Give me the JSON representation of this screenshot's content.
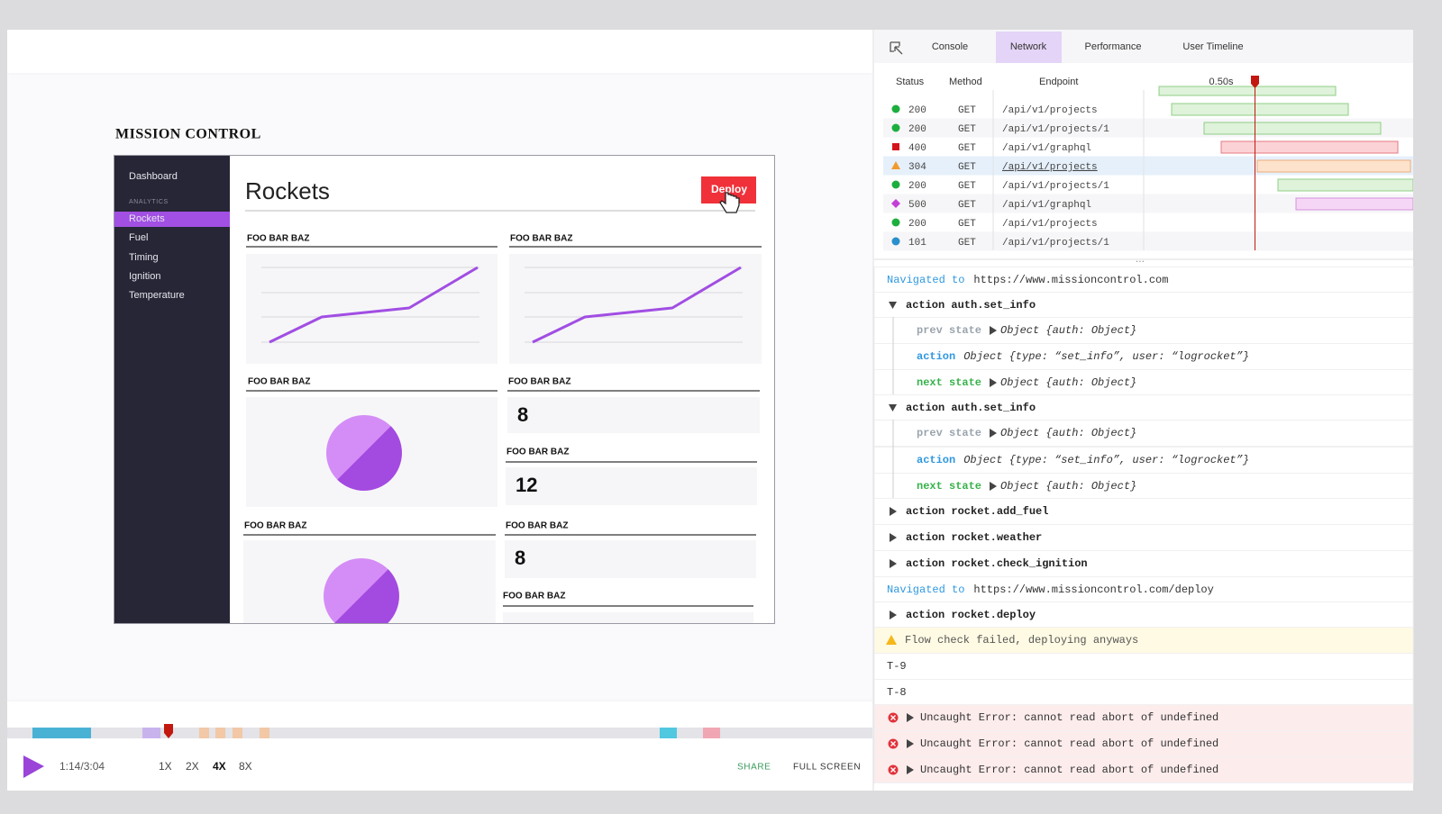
{
  "app": {
    "title": "MISSION CONTROL",
    "sidebar": {
      "top_item": "Dashboard",
      "section": "ANALYTICS",
      "items": [
        "Rockets",
        "Fuel",
        "Timing",
        "Ignition",
        "Temperature"
      ]
    },
    "page_title": "Rockets",
    "deploy_button": "Deploy",
    "widgets": [
      {
        "label": "FOO BAR BAZ"
      },
      {
        "label": "FOO BAR BAZ"
      },
      {
        "label": "FOO BAR BAZ"
      },
      {
        "label": "FOO BAR BAZ",
        "value": 8
      },
      {
        "label": "FOO BAR BAZ",
        "value": 12
      },
      {
        "label": "FOO BAR BAZ"
      },
      {
        "label": "FOO BAR BAZ",
        "value": 8
      },
      {
        "label": "FOO BAR BAZ"
      }
    ]
  },
  "devtools": {
    "tabs": [
      "Console",
      "Network",
      "Performance",
      "User Timeline"
    ],
    "network": {
      "columns": [
        "Status",
        "Method",
        "Endpoint"
      ],
      "time_marker": "0.50s",
      "rows": [
        [
          "200",
          "GET",
          "/api/v1/projects"
        ],
        [
          "200",
          "GET",
          "/api/v1/projects/1"
        ],
        [
          "400",
          "GET",
          "/api/v1/graphql"
        ],
        [
          "304",
          "GET",
          "/api/v1/projects"
        ],
        [
          "200",
          "GET",
          "/api/v1/projects/1"
        ],
        [
          "500",
          "GET",
          "/api/v1/graphql"
        ],
        [
          "200",
          "GET",
          "/api/v1/projects"
        ],
        [
          "101",
          "GET",
          "/api/v1/projects/1"
        ]
      ]
    },
    "console": [
      {
        "navigated": "Navigated to",
        "url": "https://www.missioncontrol.com"
      },
      {
        "action": "action auth.set_info",
        "children": [
          {
            "key": "prev state",
            "value": "Object {auth: Object}"
          },
          {
            "key": "action",
            "value": "Object {type: “set_info”, user: “logrocket”}"
          },
          {
            "key": "next state",
            "value": "Object {auth: Object}"
          }
        ]
      },
      {
        "action": "action auth.set_info",
        "children": [
          {
            "key": "prev state",
            "value": "Object {auth: Object}"
          },
          {
            "key": "action",
            "value": "Object {type: “set_info”, user: “logrocket”}"
          },
          {
            "key": "next state",
            "value": "Object {auth: Object}"
          }
        ]
      },
      {
        "action": "action rocket.add_fuel"
      },
      {
        "action": "action rocket.weather"
      },
      {
        "action": "action rocket.check_ignition"
      },
      {
        "navigated": "Navigated to",
        "url": "https://www.missioncontrol.com/deploy"
      },
      {
        "action": "action rocket.deploy"
      },
      {
        "warning": "Flow check failed, deploying anyways"
      },
      {
        "log": "T-9"
      },
      {
        "log": "T-8"
      },
      {
        "error": "Uncaught Error: cannot read abort of undefined"
      },
      {
        "error": "Uncaught Error: cannot read abort of undefined"
      },
      {
        "error": "Uncaught Error: cannot read abort of undefined"
      }
    ]
  },
  "player": {
    "time": "1:14/3:04",
    "speeds": [
      "1X",
      "2X",
      "4X",
      "8X"
    ],
    "share": "SHARE",
    "full_screen": "FULL SCREEN"
  }
}
